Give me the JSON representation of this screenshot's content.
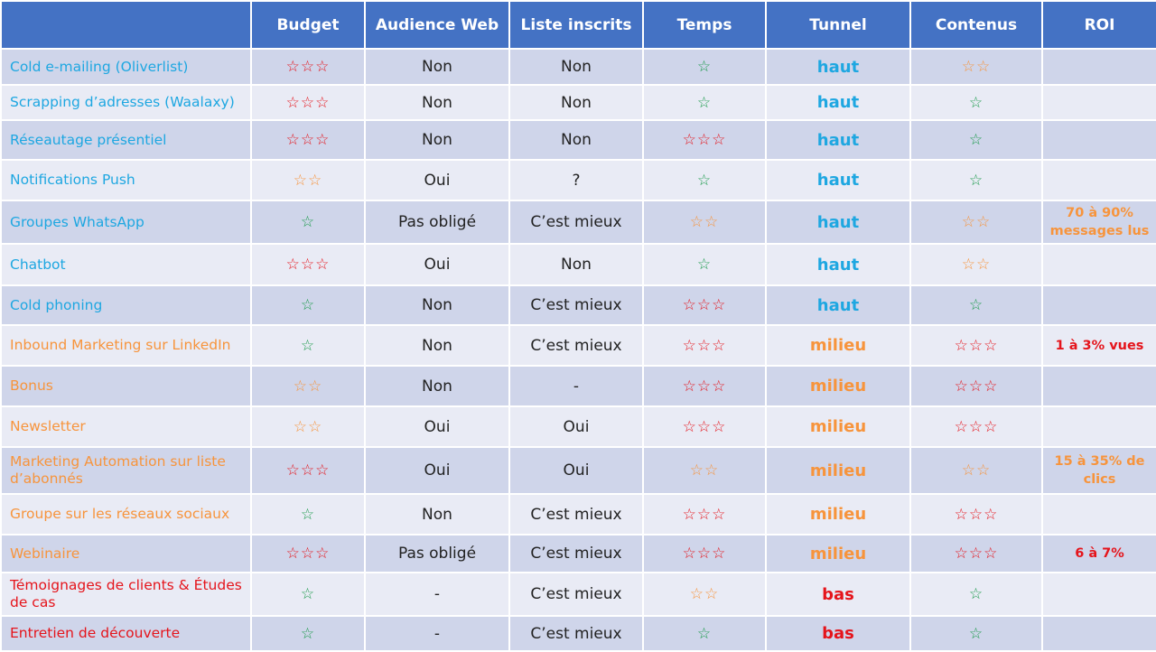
{
  "headers": [
    "",
    "Budget",
    "Audience Web",
    "Liste inscrits",
    "Temps",
    "Tunnel",
    "Contenus",
    "ROI"
  ],
  "colors": {
    "blue": "#1ea7e1",
    "orange": "#f7943c",
    "red": "#e5141b",
    "green": "#1a9a4a",
    "header": "#4472c4"
  },
  "rows": [
    {
      "name": "Cold e-mailing (Oliverlist)",
      "group": "blue",
      "budget": 3,
      "audience": "Non",
      "liste": "Non",
      "temps": 1,
      "tunnel": "haut",
      "contenus": 2,
      "roi": "",
      "roi_color": ""
    },
    {
      "name": "Scrapping d’adresses (Waalaxy)",
      "group": "blue",
      "budget": 3,
      "audience": "Non",
      "liste": "Non",
      "temps": 1,
      "tunnel": "haut",
      "contenus": 1,
      "roi": "",
      "roi_color": ""
    },
    {
      "name": "Réseautage présentiel",
      "group": "blue",
      "budget": 3,
      "audience": "Non",
      "liste": "Non",
      "temps": 3,
      "tunnel": "haut",
      "contenus": 1,
      "roi": "",
      "roi_color": ""
    },
    {
      "name": "Notifications Push",
      "group": "blue",
      "budget": 2,
      "audience": "Oui",
      "liste": "?",
      "temps": 1,
      "tunnel": "haut",
      "contenus": 1,
      "roi": "",
      "roi_color": ""
    },
    {
      "name": "Groupes WhatsApp",
      "group": "blue",
      "budget": 1,
      "audience": "Pas obligé",
      "liste": "C’est mieux",
      "temps": 2,
      "tunnel": "haut",
      "contenus": 2,
      "roi": "70 à 90% messages lus",
      "roi_color": "orange"
    },
    {
      "name": "Chatbot",
      "group": "blue",
      "budget": 3,
      "audience": "Oui",
      "liste": "Non",
      "temps": 1,
      "tunnel": "haut",
      "contenus": 2,
      "roi": "",
      "roi_color": ""
    },
    {
      "name": "Cold phoning",
      "group": "blue",
      "budget": 1,
      "audience": "Non",
      "liste": "C’est mieux",
      "temps": 3,
      "tunnel": "haut",
      "contenus": 1,
      "roi": "",
      "roi_color": ""
    },
    {
      "name": "Inbound Marketing sur LinkedIn",
      "group": "orange",
      "budget": 1,
      "audience": "Non",
      "liste": "C’est mieux",
      "temps": 3,
      "tunnel": "milieu",
      "contenus": 3,
      "roi": "1 à 3% vues",
      "roi_color": "red"
    },
    {
      "name": "Bonus",
      "group": "orange",
      "budget": 2,
      "audience": "Non",
      "liste": "-",
      "temps": 3,
      "tunnel": "milieu",
      "contenus": 3,
      "roi": "",
      "roi_color": ""
    },
    {
      "name": "Newsletter",
      "group": "orange",
      "budget": 2,
      "audience": "Oui",
      "liste": "Oui",
      "temps": 3,
      "tunnel": "milieu",
      "contenus": 3,
      "roi": "",
      "roi_color": ""
    },
    {
      "name": "Marketing Automation sur liste d’abonnés",
      "group": "orange",
      "budget": 3,
      "audience": "Oui",
      "liste": "Oui",
      "temps": 2,
      "tunnel": "milieu",
      "contenus": 2,
      "roi": "15 à 35% de clics",
      "roi_color": "orange"
    },
    {
      "name": "Groupe sur les réseaux sociaux",
      "group": "orange",
      "budget": 1,
      "audience": "Non",
      "liste": "C’est mieux",
      "temps": 3,
      "tunnel": "milieu",
      "contenus": 3,
      "roi": "",
      "roi_color": ""
    },
    {
      "name": "Webinaire",
      "group": "orange",
      "budget": 3,
      "audience": "Pas obligé",
      "liste": "C’est mieux",
      "temps": 3,
      "tunnel": "milieu",
      "contenus": 3,
      "roi": "6 à 7%",
      "roi_color": "red"
    },
    {
      "name": "Témoignages de clients & Études de cas",
      "group": "red",
      "budget": 1,
      "audience": "-",
      "liste": "C’est mieux",
      "temps": 2,
      "tunnel": "bas",
      "contenus": 1,
      "roi": "",
      "roi_color": ""
    },
    {
      "name": "Entretien de découverte",
      "group": "red",
      "budget": 1,
      "audience": "-",
      "liste": "C’est mieux",
      "temps": 1,
      "tunnel": "bas",
      "contenus": 1,
      "roi": "",
      "roi_color": ""
    }
  ]
}
